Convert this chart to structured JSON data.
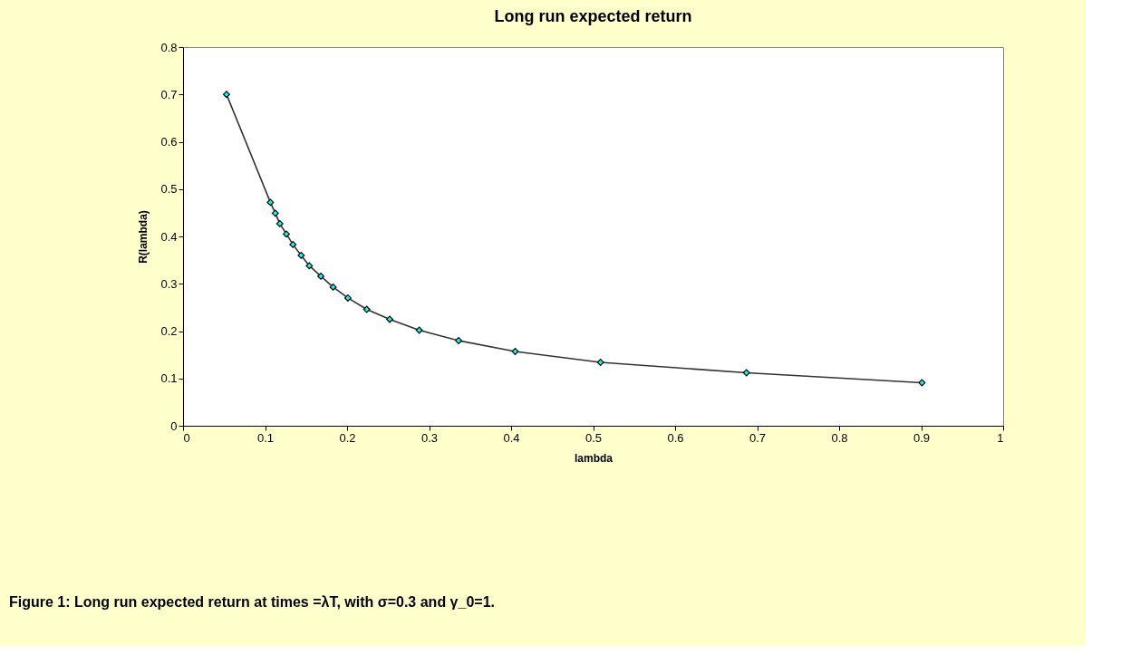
{
  "chart_data": {
    "type": "line",
    "title": "Long run expected return",
    "xlabel": "lambda",
    "ylabel": "R(lambda)",
    "x": [
      0.053,
      0.1065,
      0.1125,
      0.118,
      0.126,
      0.134,
      0.144,
      0.154,
      0.168,
      0.183,
      0.201,
      0.224,
      0.252,
      0.288,
      0.336,
      0.405,
      0.509,
      0.687,
      0.901
    ],
    "series": [
      {
        "color": "#333333",
        "values": [
          0.7,
          0.472,
          0.449,
          0.427,
          0.405,
          0.383,
          0.36,
          0.338,
          0.316,
          0.293,
          0.27,
          0.246,
          0.225,
          0.202,
          0.18,
          0.157,
          0.134,
          0.112,
          0.091
        ]
      }
    ],
    "xlim": [
      0,
      1
    ],
    "xticks": [
      0,
      0.1,
      0.2,
      0.3,
      0.4,
      0.5,
      0.6,
      0.7,
      0.8,
      0.9,
      1
    ],
    "ylim": [
      0,
      0.8
    ],
    "yticks": [
      0,
      0.1,
      0.2,
      0.3,
      0.4,
      0.5,
      0.6,
      0.7,
      0.8
    ],
    "marker": "diamond",
    "line_style": "solid",
    "grid": false,
    "annotations": [
      "Figure 1: Long run expected return at times =λT, with σ=0.3 and γ_0=1."
    ]
  }
}
